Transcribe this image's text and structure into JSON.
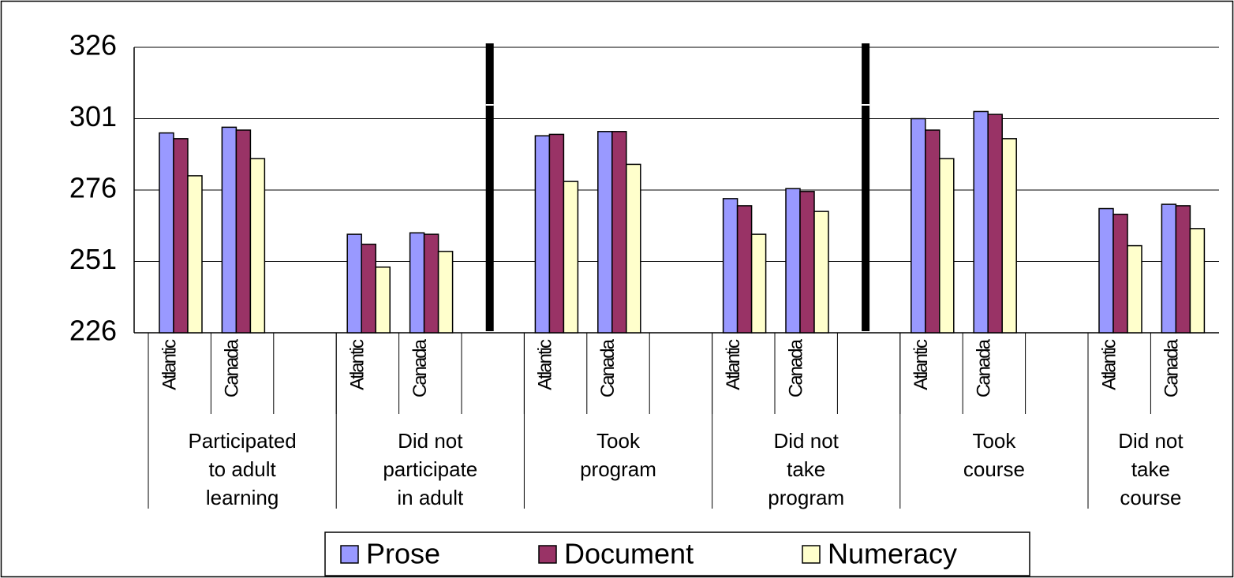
{
  "chart_data": {
    "type": "bar",
    "categories": [
      "Atlantic",
      "Canada",
      null,
      "Atlantic",
      "Canada",
      null,
      "Atlantic",
      "Canada",
      null,
      "Atlantic",
      "Canada",
      null,
      "Atlantic",
      "Canada",
      null,
      "Atlantic",
      "Canada"
    ],
    "groups": [
      "Participated\nto adult\nlearning",
      "Did not\nparticipate\nin adult",
      "Took\nprogram",
      "Did not\ntake\nprogram",
      "Took\ncourse",
      "Did not\ntake\ncourse"
    ],
    "series": [
      {
        "name": "Prose",
        "color": "#9999ff",
        "values": [
          296,
          298,
          null,
          260.5,
          261,
          null,
          295,
          296.5,
          null,
          273,
          276.5,
          null,
          301,
          303.5,
          null,
          269.5,
          271
        ]
      },
      {
        "name": "Document",
        "color": "#993366",
        "values": [
          294,
          297,
          null,
          257,
          260.5,
          null,
          295.5,
          296.5,
          null,
          270.5,
          275.5,
          null,
          297,
          302.5,
          null,
          267.5,
          270.5
        ]
      },
      {
        "name": "Numeracy",
        "color": "#ffffcc",
        "values": [
          281,
          287,
          null,
          249,
          254.5,
          null,
          279,
          285,
          null,
          260.5,
          268.5,
          null,
          287,
          294,
          null,
          256.5,
          262.5
        ]
      }
    ],
    "ylim": [
      226,
      326
    ],
    "yticks": [
      226,
      251,
      276,
      301,
      326
    ],
    "grid": true,
    "legend": "bottom"
  }
}
